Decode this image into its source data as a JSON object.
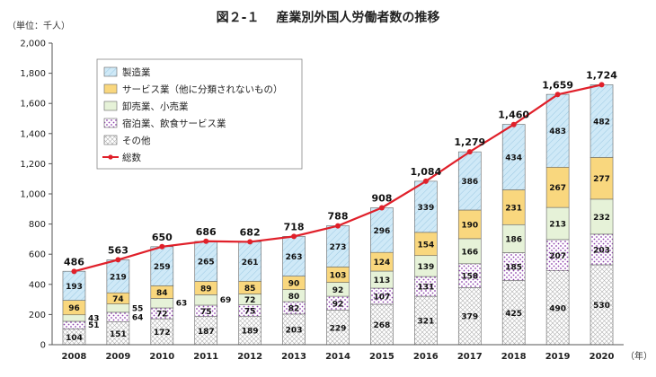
{
  "chart_data": {
    "type": "bar",
    "title": "図２-１　 産業別外国人労働者数の推移",
    "unit_label": "（単位：千人）",
    "xunit_label": "（年）",
    "ylim": [
      0,
      2000
    ],
    "yticks": [
      "0",
      "200",
      "400",
      "600",
      "800",
      "1,000",
      "1,200",
      "1,400",
      "1,600",
      "1,800",
      "2,000"
    ],
    "ytick_values": [
      0,
      200,
      400,
      600,
      800,
      1000,
      1200,
      1400,
      1600,
      1800,
      2000
    ],
    "categories": [
      "2008",
      "2009",
      "2010",
      "2011",
      "2012",
      "2013",
      "2014",
      "2015",
      "2016",
      "2017",
      "2018",
      "2019",
      "2020"
    ],
    "stacked": true,
    "series": [
      {
        "name": "その他",
        "color": "#ffffff",
        "pattern": "crosshatch",
        "values": [
          104,
          151,
          172,
          187,
          189,
          203,
          229,
          268,
          321,
          379,
          425,
          490,
          530
        ]
      },
      {
        "name": "宿泊業、飲食サービス業",
        "color": "#8e44ad",
        "pattern": "dots",
        "values": [
          51,
          64,
          72,
          75,
          75,
          82,
          92,
          107,
          131,
          158,
          185,
          207,
          203
        ]
      },
      {
        "name": "卸売業、小売業",
        "color": "#e6f2d8",
        "pattern": "solid",
        "values": [
          43,
          55,
          63,
          69,
          72,
          80,
          92,
          113,
          139,
          166,
          186,
          213,
          232
        ]
      },
      {
        "name": "サービス業（他に分類されないもの）",
        "color": "#f9d77e",
        "pattern": "solid",
        "values": [
          96,
          74,
          84,
          89,
          85,
          90,
          103,
          124,
          154,
          190,
          231,
          267,
          277
        ]
      },
      {
        "name": "製造業",
        "color": "#cfe9f7",
        "pattern": "diag",
        "values": [
          193,
          219,
          259,
          265,
          261,
          263,
          273,
          296,
          339,
          386,
          434,
          483,
          482
        ]
      }
    ],
    "line": {
      "name": "総数",
      "color": "#e0202a",
      "values": [
        486,
        563,
        650,
        686,
        682,
        718,
        788,
        908,
        1084,
        1279,
        1460,
        1659,
        1724
      ],
      "labels": [
        "486",
        "563",
        "650",
        "686",
        "682",
        "718",
        "788",
        "908",
        "1,084",
        "1,279",
        "1,460",
        "1,659",
        "1,724"
      ]
    },
    "legend_order": [
      "製造業",
      "サービス業（他に分類されないもの）",
      "卸売業、小売業",
      "宿泊業、飲食サービス業",
      "その他",
      "総数"
    ],
    "legend_position": "top-left",
    "grid": false
  }
}
